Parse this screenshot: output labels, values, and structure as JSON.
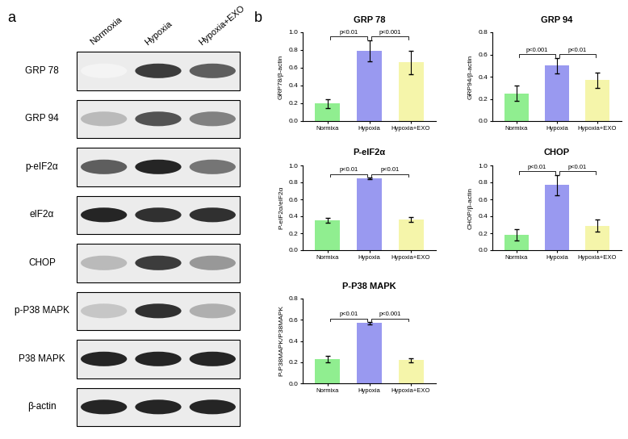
{
  "panels": [
    "a",
    "b"
  ],
  "blot": {
    "lanes": [
      "Normoxia",
      "Hypoxia",
      "Hypoxia+EXO"
    ],
    "rows": [
      {
        "label": "GRP 78",
        "intensity": [
          0.05,
          0.85,
          0.7
        ]
      },
      {
        "label": "GRP 94",
        "intensity": [
          0.3,
          0.75,
          0.55
        ]
      },
      {
        "label": "p-eIF2α",
        "intensity": [
          0.7,
          0.95,
          0.6
        ]
      },
      {
        "label": "eIF2α",
        "intensity": [
          0.95,
          0.9,
          0.9
        ]
      },
      {
        "label": "CHOP",
        "intensity": [
          0.3,
          0.85,
          0.45
        ]
      },
      {
        "label": "p-P38 MAPK",
        "intensity": [
          0.25,
          0.9,
          0.35
        ]
      },
      {
        "label": "P38 MAPK",
        "intensity": [
          0.95,
          0.95,
          0.95
        ]
      },
      {
        "label": "β-actin",
        "intensity": [
          0.95,
          0.95,
          0.95
        ]
      }
    ]
  },
  "chart_data": [
    {
      "type": "bar",
      "title": "GRP 78",
      "y_label": "GRP78/β-actin",
      "categories": [
        "Normixa",
        "Hypoxia",
        "Hypoxia+EXO"
      ],
      "values": [
        0.2,
        0.79,
        0.66
      ],
      "errors": [
        0.05,
        0.12,
        0.13
      ],
      "colors": [
        "#90ee90",
        "#9999f0",
        "#f5f5aa"
      ],
      "ylim": [
        0.0,
        1.0
      ],
      "yticks": [
        0.0,
        0.2,
        0.4,
        0.6,
        0.8,
        1.0
      ],
      "comparisons": [
        {
          "from": 0,
          "to": 1,
          "label": "p<0.01"
        },
        {
          "from": 1,
          "to": 2,
          "label": "p<0.001"
        }
      ]
    },
    {
      "type": "bar",
      "title": "GRP 94",
      "y_label": "GRP94/β-actin",
      "categories": [
        "Normixa",
        "Hypoxia",
        "Hypoxia+EXO"
      ],
      "values": [
        0.25,
        0.5,
        0.37
      ],
      "errors": [
        0.07,
        0.07,
        0.07
      ],
      "colors": [
        "#90ee90",
        "#9999f0",
        "#f5f5aa"
      ],
      "ylim": [
        0.0,
        0.8
      ],
      "yticks": [
        0.0,
        0.2,
        0.4,
        0.6,
        0.8
      ],
      "comparisons": [
        {
          "from": 0,
          "to": 1,
          "label": "p<0.001"
        },
        {
          "from": 1,
          "to": 2,
          "label": "p<0.01"
        }
      ]
    },
    {
      "type": "bar",
      "title": "P-eIF2α",
      "y_label": "P-eIF2α/eIF2α",
      "categories": [
        "Normixa",
        "Hypoxia",
        "Hypoxia+EXO"
      ],
      "values": [
        0.35,
        0.85,
        0.36
      ],
      "errors": [
        0.03,
        0.01,
        0.03
      ],
      "colors": [
        "#90ee90",
        "#9999f0",
        "#f5f5aa"
      ],
      "ylim": [
        0.0,
        1.0
      ],
      "yticks": [
        0.0,
        0.2,
        0.4,
        0.6,
        0.8,
        1.0
      ],
      "comparisons": [
        {
          "from": 0,
          "to": 1,
          "label": "p<0.01"
        },
        {
          "from": 1,
          "to": 2,
          "label": "p<0.01"
        }
      ]
    },
    {
      "type": "bar",
      "title": "CHOP",
      "y_label": "CHOP/β-actin",
      "categories": [
        "Normixa",
        "Hypoxia",
        "Hypoxia+EXO"
      ],
      "values": [
        0.18,
        0.77,
        0.29
      ],
      "errors": [
        0.07,
        0.12,
        0.07
      ],
      "colors": [
        "#90ee90",
        "#9999f0",
        "#f5f5aa"
      ],
      "ylim": [
        0.0,
        1.0
      ],
      "yticks": [
        0.0,
        0.2,
        0.4,
        0.6,
        0.8,
        1.0
      ],
      "comparisons": [
        {
          "from": 0,
          "to": 1,
          "label": "p<0.01"
        },
        {
          "from": 1,
          "to": 2,
          "label": "p<0.01"
        }
      ]
    },
    {
      "type": "bar",
      "title": "P-P38 MAPK",
      "y_label": "P-P38MAPK/P38MAPK",
      "categories": [
        "Normixa",
        "Hypoxia",
        "Hypoxia+EXO"
      ],
      "values": [
        0.23,
        0.57,
        0.22
      ],
      "errors": [
        0.03,
        0.01,
        0.02
      ],
      "colors": [
        "#90ee90",
        "#9999f0",
        "#f5f5aa"
      ],
      "ylim": [
        0.0,
        0.8
      ],
      "yticks": [
        0.0,
        0.2,
        0.4,
        0.6,
        0.8
      ],
      "comparisons": [
        {
          "from": 0,
          "to": 1,
          "label": "p<0.01"
        },
        {
          "from": 1,
          "to": 2,
          "label": "p<0.001"
        }
      ]
    }
  ]
}
